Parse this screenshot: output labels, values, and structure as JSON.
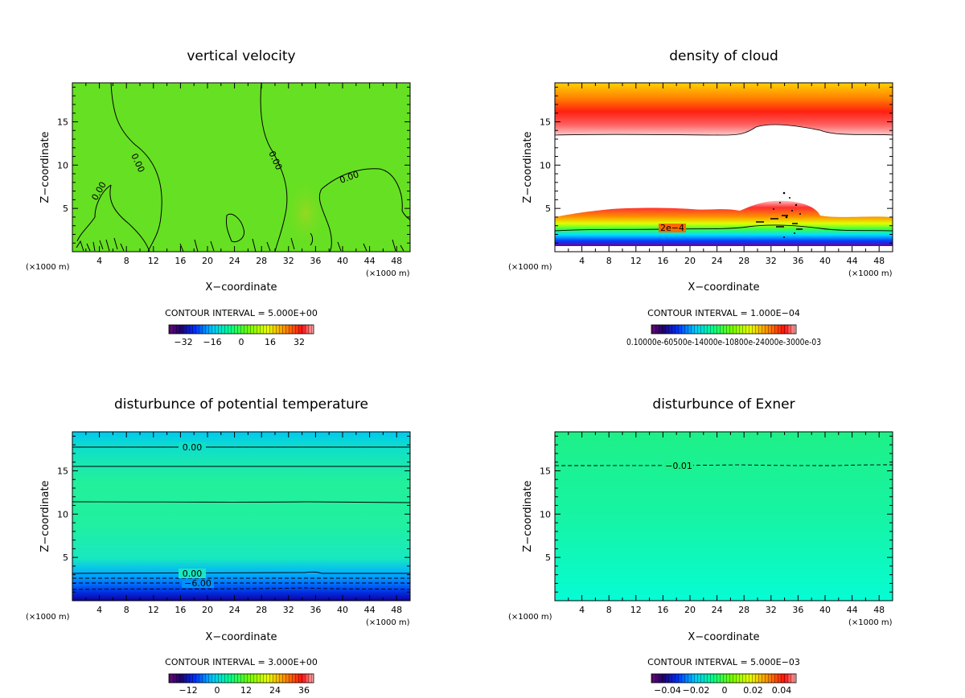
{
  "figure": {
    "xlabel": "X−coordinate",
    "ylabel": "Z−coordinate",
    "xunit_left": "(×1000 m)",
    "xunit_right": "(×1000 m)"
  },
  "chart_data": [
    {
      "type": "heatmap",
      "title": "vertical velocity",
      "xlabel": "X−coordinate",
      "ylabel": "Z−coordinate",
      "xticks": [
        4,
        8,
        12,
        16,
        20,
        24,
        28,
        32,
        36,
        40,
        44,
        48
      ],
      "yticks": [
        5,
        10,
        15
      ],
      "xlim": [
        0,
        50
      ],
      "ylim": [
        0,
        19.5
      ],
      "contour_interval": "CONTOUR INTERVAL = 5.000E+00",
      "colorbar_ticks": [
        "−32",
        "−16",
        "0",
        "16",
        "32"
      ],
      "contour_labels": [
        "0.00",
        "0.00",
        "0.00",
        "0.00"
      ],
      "field_color": "#66e022"
    },
    {
      "type": "heatmap",
      "title": "density of cloud",
      "xlabel": "X−coordinate",
      "ylabel": "Z−coordinate",
      "xticks": [
        4,
        8,
        12,
        16,
        20,
        24,
        28,
        32,
        36,
        40,
        44,
        48
      ],
      "yticks": [
        5,
        10,
        15
      ],
      "xlim": [
        0,
        50
      ],
      "ylim": [
        0,
        19.5
      ],
      "contour_interval": "CONTOUR INTERVAL = 1.000E−04",
      "colorbar_ticks": [
        "0.10000e-60500e-14000e-10800e-24000e-3000e-03"
      ],
      "contour_labels": [
        "2e−4"
      ],
      "field_color": "#ff2a1a"
    },
    {
      "type": "heatmap",
      "title": "disturbunce of potential temperature",
      "xlabel": "X−coordinate",
      "ylabel": "Z−coordinate",
      "xticks": [
        4,
        8,
        12,
        16,
        20,
        24,
        28,
        32,
        36,
        40,
        44,
        48
      ],
      "yticks": [
        5,
        10,
        15
      ],
      "xlim": [
        0,
        50
      ],
      "ylim": [
        0,
        19.5
      ],
      "contour_interval": "CONTOUR INTERVAL = 3.000E+00",
      "colorbar_ticks": [
        "−12",
        "0",
        "12",
        "24",
        "36"
      ],
      "contour_labels": [
        "0.00",
        "0.00",
        "−6.00"
      ],
      "field_color": "#22f08a"
    },
    {
      "type": "heatmap",
      "title": "disturbunce of Exner",
      "xlabel": "X−coordinate",
      "ylabel": "Z−coordinate",
      "xticks": [
        4,
        8,
        12,
        16,
        20,
        24,
        28,
        32,
        36,
        40,
        44,
        48
      ],
      "yticks": [
        5,
        10,
        15
      ],
      "xlim": [
        0,
        50
      ],
      "ylim": [
        0,
        19.5
      ],
      "contour_interval": "CONTOUR INTERVAL = 5.000E−03",
      "colorbar_ticks": [
        "−0.04",
        "−0.02",
        "0",
        "0.02",
        "0.04"
      ],
      "contour_labels": [
        "−0.01"
      ],
      "field_color": "#1df09a"
    }
  ]
}
